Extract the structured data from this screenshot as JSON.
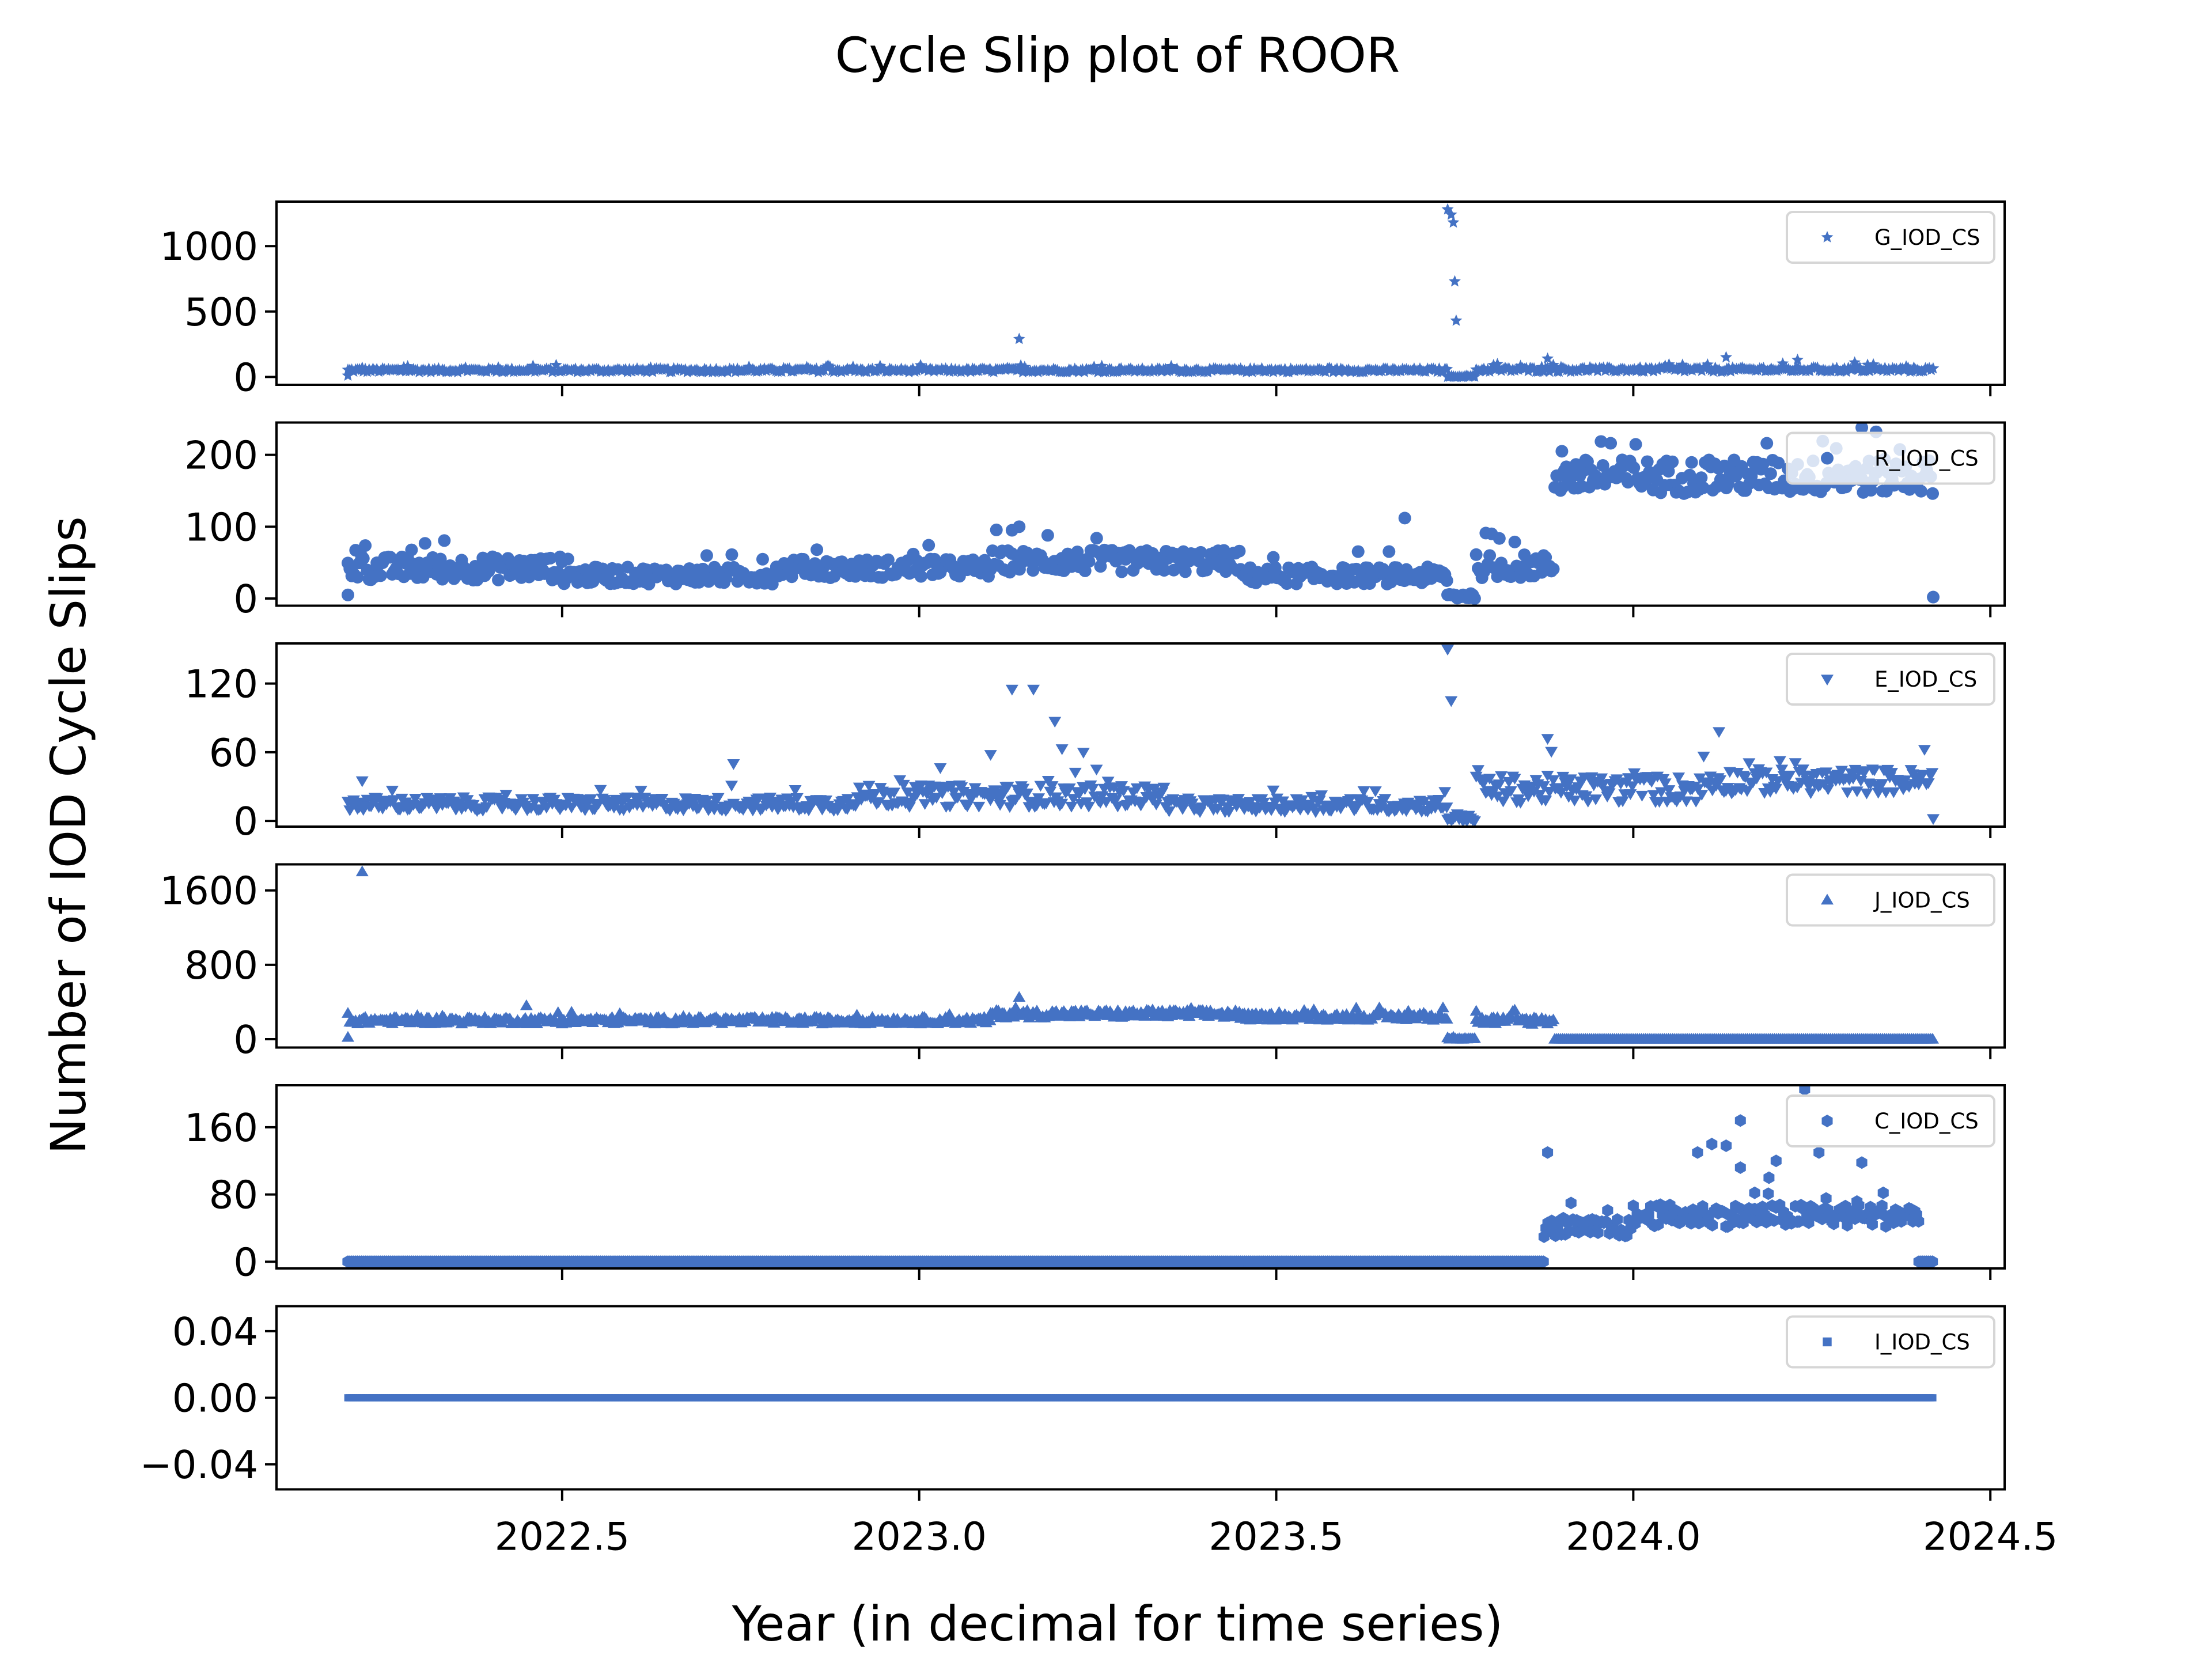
{
  "figure": {
    "title": "Cycle Slip plot of ROOR",
    "xlabel": "Year (in decimal for time series)",
    "ylabel": "Number of IOD Cycle Slips",
    "marker_color": "#4472C4"
  },
  "chart_data": {
    "type": "scatter",
    "title": "Cycle Slip plot of ROOR",
    "xlabel": "Year (in decimal for time series)",
    "ylabel": "Number of IOD Cycle Slips",
    "shared_x": true,
    "xlim": [
      2022.1,
      2024.52
    ],
    "xticks": [
      2022.5,
      2023.0,
      2023.5,
      2024.0,
      2024.5
    ],
    "xtick_labels": [
      "2022.5",
      "2023.0",
      "2023.5",
      "2024.0",
      "2024.5"
    ],
    "legend_position": "top-right",
    "grid": false,
    "subplots": [
      {
        "name": "G_IOD_CS",
        "marker": "star",
        "ylim": [
          -60,
          1340
        ],
        "yticks": [
          0,
          500,
          1000
        ],
        "ytick_labels": [
          "0",
          "500",
          "1000"
        ],
        "segments": [
          {
            "x0": 2022.2,
            "x1": 2023.74,
            "base": 50,
            "jitter": 12
          },
          {
            "x0": 2023.74,
            "x1": 2023.78,
            "base": 3,
            "jitter": 3
          },
          {
            "x0": 2023.78,
            "x1": 2024.42,
            "base": 55,
            "jitter": 14
          }
        ],
        "points": [
          [
            2023.14,
            290
          ],
          [
            2023.74,
            1280
          ],
          [
            2023.745,
            1240
          ],
          [
            2023.748,
            1180
          ],
          [
            2023.75,
            730
          ],
          [
            2023.752,
            430
          ],
          [
            2023.88,
            140
          ],
          [
            2024.13,
            150
          ],
          [
            2024.23,
            130
          ],
          [
            2024.31,
            110
          ],
          [
            2022.2,
            10
          ],
          [
            2022.22,
            70
          ]
        ]
      },
      {
        "name": "R_IOD_CS",
        "marker": "circle",
        "ylim": [
          -10,
          245
        ],
        "yticks": [
          0,
          100,
          200
        ],
        "ytick_labels": [
          "0",
          "100",
          "200"
        ],
        "segments": [
          {
            "x0": 2022.2,
            "x1": 2022.5,
            "base": 42,
            "jitter": 14
          },
          {
            "x0": 2022.5,
            "x1": 2022.8,
            "base": 32,
            "jitter": 10
          },
          {
            "x0": 2022.8,
            "x1": 2023.1,
            "base": 42,
            "jitter": 11
          },
          {
            "x0": 2023.1,
            "x1": 2023.45,
            "base": 52,
            "jitter": 13
          },
          {
            "x0": 2023.45,
            "x1": 2023.74,
            "base": 32,
            "jitter": 10
          },
          {
            "x0": 2023.74,
            "x1": 2023.78,
            "base": 4,
            "jitter": 4
          },
          {
            "x0": 2023.78,
            "x1": 2023.89,
            "base": 45,
            "jitter": 14
          },
          {
            "x0": 2023.89,
            "x1": 2024.42,
            "base": 170,
            "jitter": 20
          }
        ],
        "points": [
          [
            2022.2,
            5
          ],
          [
            2023.13,
            95
          ],
          [
            2023.14,
            100
          ],
          [
            2023.18,
            88
          ],
          [
            2023.68,
            112
          ],
          [
            2024.32,
            238
          ],
          [
            2024.34,
            232
          ],
          [
            2024.42,
            2
          ],
          [
            2023.9,
            205
          ]
        ]
      },
      {
        "name": "E_IOD_CS",
        "marker": "triangle-down",
        "ylim": [
          -5,
          155
        ],
        "yticks": [
          0,
          60,
          120
        ],
        "ytick_labels": [
          "0",
          "60",
          "120"
        ],
        "segments": [
          {
            "x0": 2022.2,
            "x1": 2022.9,
            "base": 15,
            "jitter": 5
          },
          {
            "x0": 2022.9,
            "x1": 2023.35,
            "base": 22,
            "jitter": 8
          },
          {
            "x0": 2023.35,
            "x1": 2023.74,
            "base": 14,
            "jitter": 5
          },
          {
            "x0": 2023.74,
            "x1": 2023.78,
            "base": 3,
            "jitter": 3
          },
          {
            "x0": 2023.78,
            "x1": 2024.1,
            "base": 28,
            "jitter": 10
          },
          {
            "x0": 2024.1,
            "x1": 2024.42,
            "base": 35,
            "jitter": 9
          }
        ],
        "points": [
          [
            2022.22,
            35
          ],
          [
            2022.74,
            50
          ],
          [
            2023.13,
            115
          ],
          [
            2023.16,
            115
          ],
          [
            2023.19,
            87
          ],
          [
            2023.2,
            63
          ],
          [
            2023.23,
            60
          ],
          [
            2023.74,
            150
          ],
          [
            2023.745,
            105
          ],
          [
            2023.88,
            72
          ],
          [
            2024.12,
            78
          ],
          [
            2024.42,
            2
          ],
          [
            2023.1,
            58
          ]
        ]
      },
      {
        "name": "J_IOD_CS",
        "marker": "triangle-up",
        "ylim": [
          -90,
          1880
        ],
        "yticks": [
          0,
          800,
          1600
        ],
        "ytick_labels": [
          "0",
          "800",
          "1600"
        ],
        "segments": [
          {
            "x0": 2022.2,
            "x1": 2023.1,
            "base": 200,
            "jitter": 30
          },
          {
            "x0": 2023.1,
            "x1": 2023.45,
            "base": 270,
            "jitter": 35
          },
          {
            "x0": 2023.45,
            "x1": 2023.74,
            "base": 240,
            "jitter": 30
          },
          {
            "x0": 2023.74,
            "x1": 2023.78,
            "base": 10,
            "jitter": 10
          },
          {
            "x0": 2023.78,
            "x1": 2023.89,
            "base": 200,
            "jitter": 35
          },
          {
            "x0": 2023.89,
            "x1": 2024.42,
            "base": 0,
            "jitter": 0
          }
        ],
        "points": [
          [
            2022.2,
            20
          ],
          [
            2022.22,
            1800
          ],
          [
            2022.45,
            360
          ],
          [
            2023.14,
            450
          ],
          [
            2023.78,
            300
          ]
        ]
      },
      {
        "name": "C_IOD_CS",
        "marker": "hexagon",
        "ylim": [
          -8,
          210
        ],
        "yticks": [
          0,
          80,
          160
        ],
        "ytick_labels": [
          "0",
          "80",
          "160"
        ],
        "segments": [
          {
            "x0": 2022.2,
            "x1": 2023.875,
            "base": 0,
            "jitter": 0
          },
          {
            "x0": 2023.875,
            "x1": 2024.0,
            "base": 40,
            "jitter": 9
          },
          {
            "x0": 2024.0,
            "x1": 2024.4,
            "base": 55,
            "jitter": 11
          },
          {
            "x0": 2024.4,
            "x1": 2024.42,
            "base": 0,
            "jitter": 0
          }
        ],
        "points": [
          [
            2023.88,
            130
          ],
          [
            2024.09,
            130
          ],
          [
            2024.11,
            140
          ],
          [
            2024.13,
            138
          ],
          [
            2024.15,
            112
          ],
          [
            2024.17,
            82
          ],
          [
            2024.2,
            120
          ],
          [
            2024.15,
            168
          ],
          [
            2024.24,
            205
          ],
          [
            2024.19,
            100
          ],
          [
            2024.26,
            130
          ],
          [
            2024.32,
            118
          ],
          [
            2024.35,
            82
          ]
        ]
      },
      {
        "name": "I_IOD_CS",
        "marker": "square",
        "ylim": [
          -0.055,
          0.055
        ],
        "yticks": [
          -0.04,
          0.0,
          0.04
        ],
        "ytick_labels": [
          "−0.04",
          "0.00",
          "0.04"
        ],
        "segments": [
          {
            "x0": 2022.2,
            "x1": 2024.42,
            "base": 0,
            "jitter": 0
          }
        ],
        "points": []
      }
    ]
  }
}
